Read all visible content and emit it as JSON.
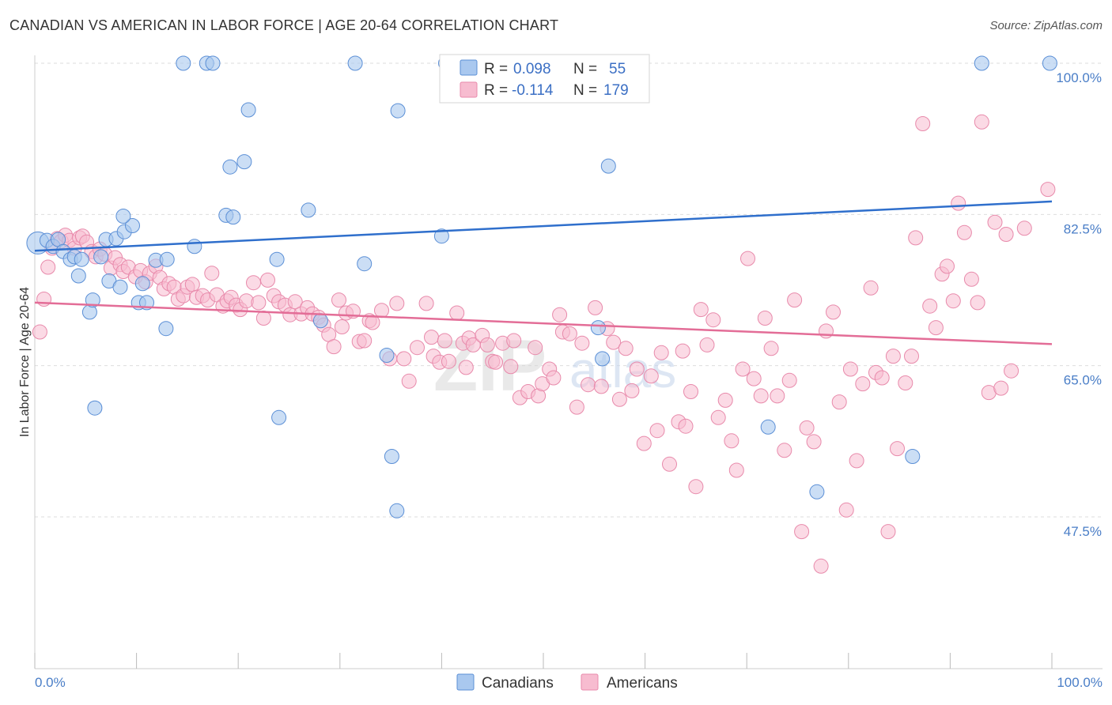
{
  "header": {
    "title": "CANADIAN VS AMERICAN IN LABOR FORCE | AGE 20-64 CORRELATION CHART",
    "source": "Source: ZipAtlas.com"
  },
  "watermark": {
    "zip": "ZIP",
    "atlas": "atlas"
  },
  "colors": {
    "canadians_fill": "#a9c8ef",
    "canadians_stroke": "#5b8fd6",
    "canadians_line": "#2f6fcc",
    "americans_fill": "#f7bcd0",
    "americans_stroke": "#e88aab",
    "americans_line": "#e36d97",
    "grid": "#dddddd",
    "tick_text": "#4a7ec7"
  },
  "legend": {
    "rows": [
      {
        "r_label": "R = ",
        "r_value": "0.098",
        "n_label": "N = ",
        "n_value": "55"
      },
      {
        "r_label": "R = ",
        "r_value": "-0.114",
        "n_label": "N = ",
        "n_value": "179"
      }
    ],
    "bottom": [
      "Canadians",
      "Americans"
    ]
  },
  "chart_data": {
    "type": "scatter",
    "title": "CANADIAN VS AMERICAN IN LABOR FORCE | AGE 20-64 CORRELATION CHART",
    "xlabel": "",
    "ylabel": "In Labor Force | Age 20-64",
    "xlim": [
      0,
      100
    ],
    "ylim": [
      33,
      101.5
    ],
    "x_tick_labels": [
      "0.0%",
      "100.0%"
    ],
    "y_ticks": [
      47.5,
      65.0,
      82.5,
      100.0
    ],
    "y_tick_labels": [
      "47.5%",
      "65.0%",
      "82.5%",
      "100.0%"
    ],
    "grid": true,
    "legend_position": "top-center",
    "series": [
      {
        "name": "Canadians",
        "r": 0.098,
        "n": 55,
        "trend": {
          "x": [
            0,
            100
          ],
          "y": [
            78.3,
            84.0
          ]
        },
        "points": [
          [
            0.3,
            79.2
          ],
          [
            1.2,
            79.5
          ],
          [
            1.8,
            78.8
          ],
          [
            2.3,
            79.6
          ],
          [
            2.8,
            78.2
          ],
          [
            3.5,
            77.3
          ],
          [
            3.9,
            77.6
          ],
          [
            4.3,
            75.4
          ],
          [
            4.6,
            77.3
          ],
          [
            5.4,
            71.2
          ],
          [
            5.7,
            72.6
          ],
          [
            6.5,
            77.6
          ],
          [
            7.0,
            79.6
          ],
          [
            7.3,
            74.8
          ],
          [
            8.0,
            79.7
          ],
          [
            8.4,
            74.1
          ],
          [
            8.8,
            80.5
          ],
          [
            9.6,
            81.2
          ],
          [
            10.2,
            72.3
          ],
          [
            10.6,
            74.5
          ],
          [
            11.0,
            72.3
          ],
          [
            11.9,
            77.2
          ],
          [
            13.0,
            77.3
          ],
          [
            12.9,
            69.3
          ],
          [
            15.7,
            78.8
          ],
          [
            14.6,
            100.0
          ],
          [
            16.9,
            100.0
          ],
          [
            17.5,
            100.0
          ],
          [
            18.8,
            82.4
          ],
          [
            19.5,
            82.2
          ],
          [
            19.2,
            88.0
          ],
          [
            20.6,
            88.6
          ],
          [
            21.0,
            94.6
          ],
          [
            23.8,
            77.3
          ],
          [
            24.0,
            59.0
          ],
          [
            26.9,
            83.0
          ],
          [
            28.1,
            70.2
          ],
          [
            31.5,
            100.0
          ],
          [
            32.4,
            76.8
          ],
          [
            35.1,
            54.5
          ],
          [
            35.6,
            48.2
          ],
          [
            35.7,
            94.5
          ],
          [
            40.0,
            80.0
          ],
          [
            40.4,
            100.0
          ],
          [
            55.4,
            69.4
          ],
          [
            55.8,
            65.8
          ],
          [
            56.4,
            88.1
          ],
          [
            5.9,
            60.1
          ],
          [
            8.7,
            82.3
          ],
          [
            34.6,
            66.2
          ],
          [
            72.1,
            57.9
          ],
          [
            76.9,
            50.4
          ],
          [
            86.3,
            54.5
          ],
          [
            93.1,
            100.0
          ],
          [
            99.8,
            100.0
          ]
        ]
      },
      {
        "name": "Americans",
        "r": -0.114,
        "n": 179,
        "trend": {
          "x": [
            0,
            100
          ],
          "y": [
            72.3,
            67.5
          ]
        },
        "points": [
          [
            0.5,
            68.9
          ],
          [
            0.9,
            72.7
          ],
          [
            1.3,
            76.4
          ],
          [
            1.7,
            78.6
          ],
          [
            2.2,
            79.7
          ],
          [
            2.6,
            79.4
          ],
          [
            3.0,
            80.1
          ],
          [
            3.4,
            79.5
          ],
          [
            3.9,
            78.6
          ],
          [
            4.4,
            79.8
          ],
          [
            4.7,
            80.0
          ],
          [
            5.1,
            79.3
          ],
          [
            5.6,
            78.2
          ],
          [
            6.0,
            77.6
          ],
          [
            6.4,
            78.5
          ],
          [
            6.9,
            77.9
          ],
          [
            7.5,
            76.3
          ],
          [
            7.9,
            77.5
          ],
          [
            8.4,
            76.7
          ],
          [
            8.7,
            75.9
          ],
          [
            9.2,
            76.4
          ],
          [
            9.9,
            75.3
          ],
          [
            10.4,
            76.0
          ],
          [
            10.9,
            74.7
          ],
          [
            11.3,
            75.7
          ],
          [
            11.9,
            76.5
          ],
          [
            12.3,
            75.2
          ],
          [
            12.7,
            73.9
          ],
          [
            13.2,
            74.5
          ],
          [
            13.7,
            74.1
          ],
          [
            14.1,
            72.7
          ],
          [
            14.6,
            73.1
          ],
          [
            15.0,
            74.1
          ],
          [
            15.5,
            74.4
          ],
          [
            15.9,
            72.9
          ],
          [
            16.5,
            73.1
          ],
          [
            17.0,
            72.6
          ],
          [
            17.4,
            75.7
          ],
          [
            17.9,
            73.2
          ],
          [
            18.5,
            71.9
          ],
          [
            18.9,
            72.5
          ],
          [
            19.3,
            72.9
          ],
          [
            19.8,
            72.0
          ],
          [
            20.2,
            71.5
          ],
          [
            20.8,
            72.5
          ],
          [
            21.5,
            74.6
          ],
          [
            22.0,
            72.3
          ],
          [
            22.5,
            70.5
          ],
          [
            22.9,
            74.9
          ],
          [
            23.5,
            73.1
          ],
          [
            24.0,
            72.4
          ],
          [
            24.6,
            72.0
          ],
          [
            25.1,
            70.9
          ],
          [
            25.6,
            72.4
          ],
          [
            26.2,
            71.0
          ],
          [
            26.8,
            71.7
          ],
          [
            27.3,
            71.0
          ],
          [
            27.9,
            70.6
          ],
          [
            28.4,
            69.7
          ],
          [
            28.9,
            68.6
          ],
          [
            29.4,
            67.2
          ],
          [
            29.9,
            72.6
          ],
          [
            30.2,
            69.5
          ],
          [
            30.6,
            71.1
          ],
          [
            31.3,
            71.3
          ],
          [
            31.9,
            67.8
          ],
          [
            32.4,
            67.9
          ],
          [
            32.9,
            70.2
          ],
          [
            33.2,
            70.0
          ],
          [
            34.1,
            71.4
          ],
          [
            34.9,
            65.8
          ],
          [
            35.6,
            72.2
          ],
          [
            36.3,
            65.8
          ],
          [
            36.8,
            63.2
          ],
          [
            37.6,
            67.1
          ],
          [
            38.5,
            72.2
          ],
          [
            39.0,
            68.3
          ],
          [
            39.2,
            66.1
          ],
          [
            39.8,
            65.4
          ],
          [
            40.3,
            67.9
          ],
          [
            40.7,
            65.5
          ],
          [
            41.5,
            71.1
          ],
          [
            42.1,
            67.6
          ],
          [
            42.4,
            64.8
          ],
          [
            42.7,
            68.2
          ],
          [
            43.1,
            67.4
          ],
          [
            44.0,
            68.5
          ],
          [
            44.5,
            67.4
          ],
          [
            45.0,
            65.5
          ],
          [
            45.3,
            65.4
          ],
          [
            46.0,
            67.6
          ],
          [
            46.8,
            64.9
          ],
          [
            47.1,
            67.9
          ],
          [
            47.7,
            61.3
          ],
          [
            48.5,
            62.0
          ],
          [
            49.2,
            67.1
          ],
          [
            49.5,
            61.5
          ],
          [
            49.9,
            62.9
          ],
          [
            50.6,
            64.6
          ],
          [
            51.0,
            63.6
          ],
          [
            51.6,
            70.9
          ],
          [
            51.9,
            68.9
          ],
          [
            52.6,
            68.7
          ],
          [
            53.3,
            60.2
          ],
          [
            53.8,
            67.6
          ],
          [
            54.4,
            62.8
          ],
          [
            55.1,
            71.7
          ],
          [
            55.7,
            62.6
          ],
          [
            56.3,
            69.3
          ],
          [
            56.9,
            67.7
          ],
          [
            57.5,
            61.1
          ],
          [
            58.1,
            67.0
          ],
          [
            58.7,
            62.1
          ],
          [
            59.2,
            64.6
          ],
          [
            59.9,
            56.0
          ],
          [
            60.6,
            63.8
          ],
          [
            61.2,
            57.5
          ],
          [
            61.6,
            66.5
          ],
          [
            62.4,
            53.6
          ],
          [
            63.3,
            58.5
          ],
          [
            63.7,
            66.7
          ],
          [
            64.0,
            58.0
          ],
          [
            64.5,
            62.0
          ],
          [
            65.0,
            51.0
          ],
          [
            65.5,
            71.5
          ],
          [
            66.1,
            67.4
          ],
          [
            66.7,
            70.3
          ],
          [
            67.2,
            59.0
          ],
          [
            67.9,
            61.0
          ],
          [
            68.5,
            56.3
          ],
          [
            69.0,
            52.9
          ],
          [
            69.6,
            64.6
          ],
          [
            70.1,
            77.4
          ],
          [
            70.7,
            63.5
          ],
          [
            71.4,
            61.5
          ],
          [
            71.8,
            70.5
          ],
          [
            72.4,
            67.0
          ],
          [
            73.0,
            61.5
          ],
          [
            73.7,
            55.2
          ],
          [
            74.2,
            63.3
          ],
          [
            74.7,
            72.6
          ],
          [
            75.4,
            45.8
          ],
          [
            75.9,
            57.8
          ],
          [
            76.6,
            56.2
          ],
          [
            77.3,
            41.8
          ],
          [
            77.8,
            69.0
          ],
          [
            78.5,
            71.2
          ],
          [
            79.1,
            60.8
          ],
          [
            79.8,
            48.3
          ],
          [
            80.2,
            64.6
          ],
          [
            80.8,
            54.0
          ],
          [
            81.4,
            62.9
          ],
          [
            82.2,
            74.0
          ],
          [
            82.7,
            64.2
          ],
          [
            83.3,
            63.6
          ],
          [
            83.9,
            45.8
          ],
          [
            84.4,
            66.1
          ],
          [
            84.8,
            55.4
          ],
          [
            85.6,
            63.0
          ],
          [
            86.2,
            66.1
          ],
          [
            86.6,
            79.8
          ],
          [
            87.3,
            93.0
          ],
          [
            88.0,
            71.9
          ],
          [
            88.6,
            69.4
          ],
          [
            89.2,
            75.6
          ],
          [
            89.7,
            76.5
          ],
          [
            90.3,
            72.5
          ],
          [
            90.8,
            83.8
          ],
          [
            91.4,
            80.4
          ],
          [
            92.1,
            75.0
          ],
          [
            92.7,
            72.3
          ],
          [
            93.1,
            93.2
          ],
          [
            93.8,
            61.9
          ],
          [
            94.4,
            81.6
          ],
          [
            95.0,
            62.4
          ],
          [
            95.5,
            80.2
          ],
          [
            96.0,
            64.4
          ],
          [
            97.3,
            80.9
          ],
          [
            99.6,
            85.4
          ]
        ]
      }
    ]
  }
}
